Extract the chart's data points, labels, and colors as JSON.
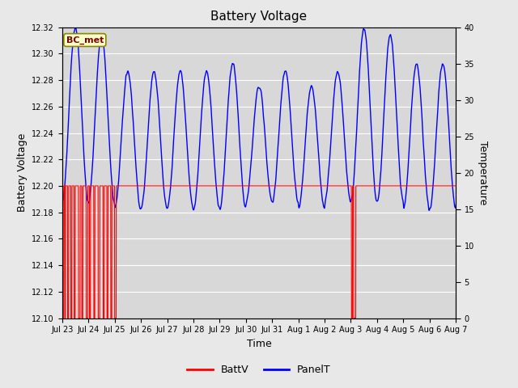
{
  "title": "Battery Voltage",
  "xlabel": "Time",
  "ylabel_left": "Battery Voltage",
  "ylabel_right": "Temperature",
  "ylim_left": [
    12.1,
    12.32
  ],
  "ylim_right": [
    0,
    40
  ],
  "bg_color": "#e8e8e8",
  "plot_bg_color": "#d8d8d8",
  "grid_color": "#ffffff",
  "annotation_text": "BC_met",
  "annotation_bg": "#ffffcc",
  "annotation_border": "#888800",
  "annotation_text_color": "#800000",
  "batt_color": "#ff0000",
  "panel_color": "#0000ff",
  "yticks_left": [
    12.1,
    12.12,
    12.14,
    12.16,
    12.18,
    12.2,
    12.22,
    12.24,
    12.26,
    12.28,
    12.3,
    12.32
  ],
  "yticks_right": [
    0,
    5,
    10,
    15,
    20,
    25,
    30,
    35,
    40
  ],
  "tick_labels": [
    "Jul 23",
    "Jul 24",
    "Jul 25",
    "Jul 26",
    "Jul 27",
    "Jul 28",
    "Jul 29",
    "Jul 30",
    "Jul 31",
    "Aug 1",
    "Aug 2",
    "Aug 3",
    "Aug 4",
    "Aug 5",
    "Aug 6",
    "Aug 7"
  ],
  "figsize": [
    6.4,
    4.8
  ],
  "dpi": 100
}
